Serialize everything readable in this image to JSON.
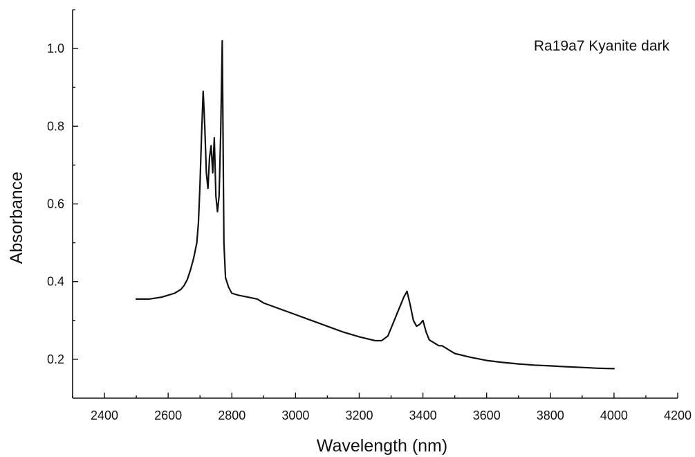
{
  "chart_data": {
    "type": "line",
    "title": "",
    "annotation": "Ra19a7 Kyanite dark",
    "xlabel": "Wavelength (nm)",
    "ylabel": "Absorbance",
    "xlim": [
      2300,
      4200
    ],
    "ylim": [
      0.1,
      1.1
    ],
    "xticks": [
      2400,
      2600,
      2800,
      3000,
      3200,
      3400,
      3600,
      3800,
      4000,
      4200
    ],
    "xtick_labels": [
      "2400",
      "2600",
      "2800",
      "3000",
      "3200",
      "3400",
      "3600",
      "3800",
      "4000",
      "4200"
    ],
    "yticks": [
      0.2,
      0.4,
      0.6,
      0.8,
      1.0
    ],
    "ytick_labels": [
      "0.2",
      "0.4",
      "0.6",
      "0.8",
      "1.0"
    ],
    "grid": false,
    "legend": "none",
    "series": [
      {
        "x": [
          2500,
          2540,
          2580,
          2600,
          2620,
          2640,
          2650,
          2660,
          2670,
          2680,
          2690,
          2695,
          2700,
          2705,
          2710,
          2715,
          2720,
          2725,
          2730,
          2735,
          2740,
          2745,
          2750,
          2755,
          2760,
          2765,
          2770,
          2775,
          2780,
          2790,
          2800,
          2820,
          2850,
          2880,
          2900,
          2950,
          3000,
          3050,
          3100,
          3150,
          3200,
          3250,
          3270,
          3290,
          3300,
          3310,
          3320,
          3330,
          3340,
          3350,
          3360,
          3370,
          3380,
          3390,
          3400,
          3410,
          3420,
          3430,
          3440,
          3450,
          3460,
          3470,
          3480,
          3500,
          3550,
          3600,
          3650,
          3700,
          3750,
          3800,
          3850,
          3900,
          3950,
          4000
        ],
        "y": [
          0.355,
          0.355,
          0.36,
          0.365,
          0.37,
          0.38,
          0.39,
          0.405,
          0.43,
          0.46,
          0.5,
          0.55,
          0.65,
          0.78,
          0.89,
          0.8,
          0.68,
          0.64,
          0.72,
          0.75,
          0.68,
          0.77,
          0.62,
          0.58,
          0.62,
          0.78,
          1.02,
          0.5,
          0.41,
          0.385,
          0.37,
          0.365,
          0.36,
          0.355,
          0.345,
          0.33,
          0.315,
          0.3,
          0.285,
          0.27,
          0.258,
          0.248,
          0.248,
          0.26,
          0.28,
          0.3,
          0.32,
          0.34,
          0.36,
          0.375,
          0.34,
          0.3,
          0.285,
          0.29,
          0.3,
          0.27,
          0.25,
          0.245,
          0.24,
          0.235,
          0.235,
          0.23,
          0.225,
          0.215,
          0.205,
          0.197,
          0.192,
          0.188,
          0.185,
          0.183,
          0.181,
          0.179,
          0.177,
          0.176
        ]
      }
    ]
  }
}
